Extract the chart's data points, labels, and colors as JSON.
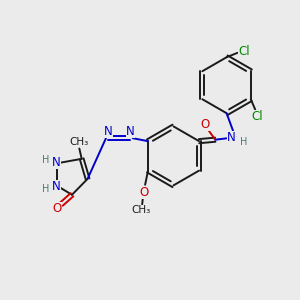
{
  "background_color": "#ebebeb",
  "bond_color": "#1a1a1a",
  "N_color": "#0000cc",
  "O_color": "#cc0000",
  "Cl_color": "#008800",
  "H_color": "#4a7a7a",
  "font_size": 8.5,
  "figsize": [
    3.0,
    3.0
  ],
  "dpi": 100,
  "xlim": [
    0,
    10
  ],
  "ylim": [
    0,
    10
  ]
}
